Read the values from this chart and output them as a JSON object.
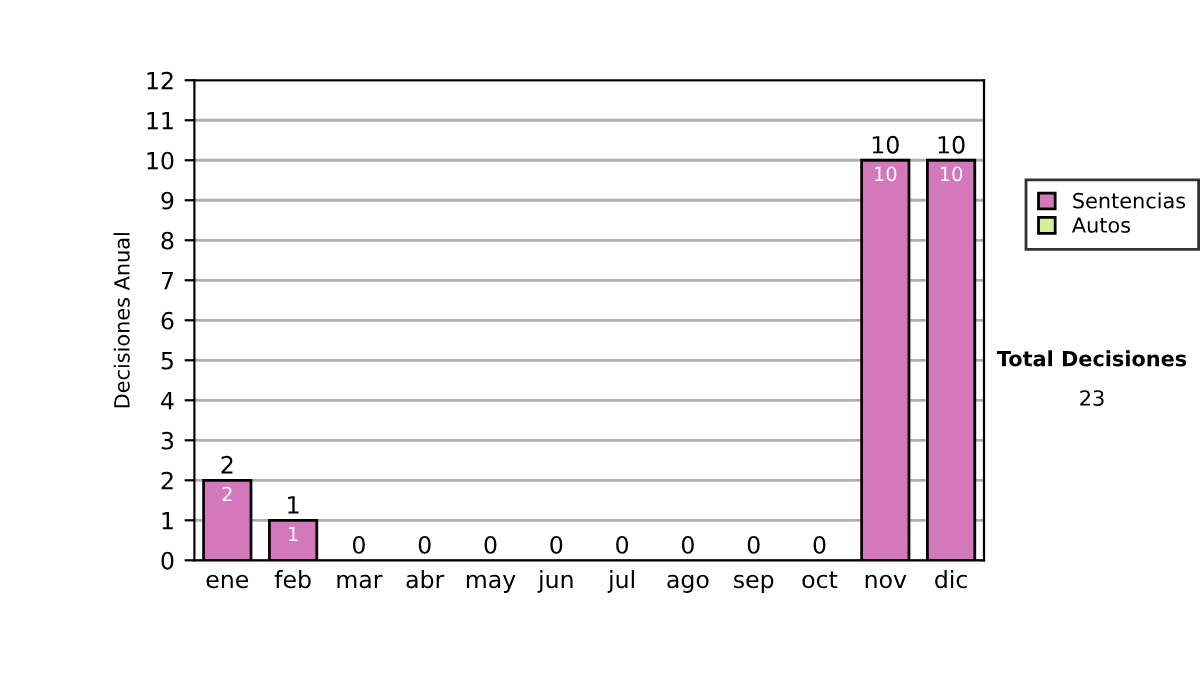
{
  "chart_data": {
    "type": "bar",
    "stacked": true,
    "ylabel": "Decisiones Anual",
    "categories": [
      "ene",
      "feb",
      "mar",
      "abr",
      "may",
      "jun",
      "jul",
      "ago",
      "sep",
      "oct",
      "nov",
      "dic"
    ],
    "series": [
      {
        "name": "Sentencias",
        "color": "#d478bc",
        "values": [
          2,
          1,
          0,
          0,
          0,
          0,
          0,
          0,
          0,
          0,
          10,
          10
        ],
        "value_labels": [
          "2",
          "1",
          null,
          null,
          null,
          null,
          null,
          null,
          null,
          null,
          "10",
          "10"
        ]
      },
      {
        "name": "Autos",
        "color": "#d8eca0",
        "values": [
          0,
          0,
          0,
          0,
          0,
          0,
          0,
          0,
          0,
          0,
          0,
          0
        ]
      }
    ],
    "totals": [
      "2",
      "1",
      "0",
      "0",
      "0",
      "0",
      "0",
      "0",
      "0",
      "0",
      "10",
      "10"
    ],
    "ylim": [
      0,
      12
    ],
    "yticks": [
      0,
      1,
      2,
      3,
      4,
      5,
      6,
      7,
      8,
      9,
      10,
      11,
      12
    ],
    "grid": "y",
    "legend": "right",
    "annotations": [
      "Total Decisiones",
      "23"
    ]
  }
}
